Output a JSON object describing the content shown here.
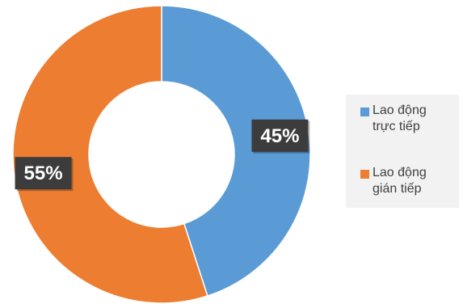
{
  "chart_data": {
    "type": "pie",
    "title": "",
    "donut": true,
    "labels": [
      "Lao động trực tiếp",
      "Lao động gián tiếp"
    ],
    "values": [
      45,
      55
    ],
    "data_labels": [
      "45%",
      "55%"
    ],
    "colors": [
      "#5b9bd5",
      "#ed7d31"
    ],
    "legend_position": "right",
    "label_style": "white bold text on dark box"
  }
}
